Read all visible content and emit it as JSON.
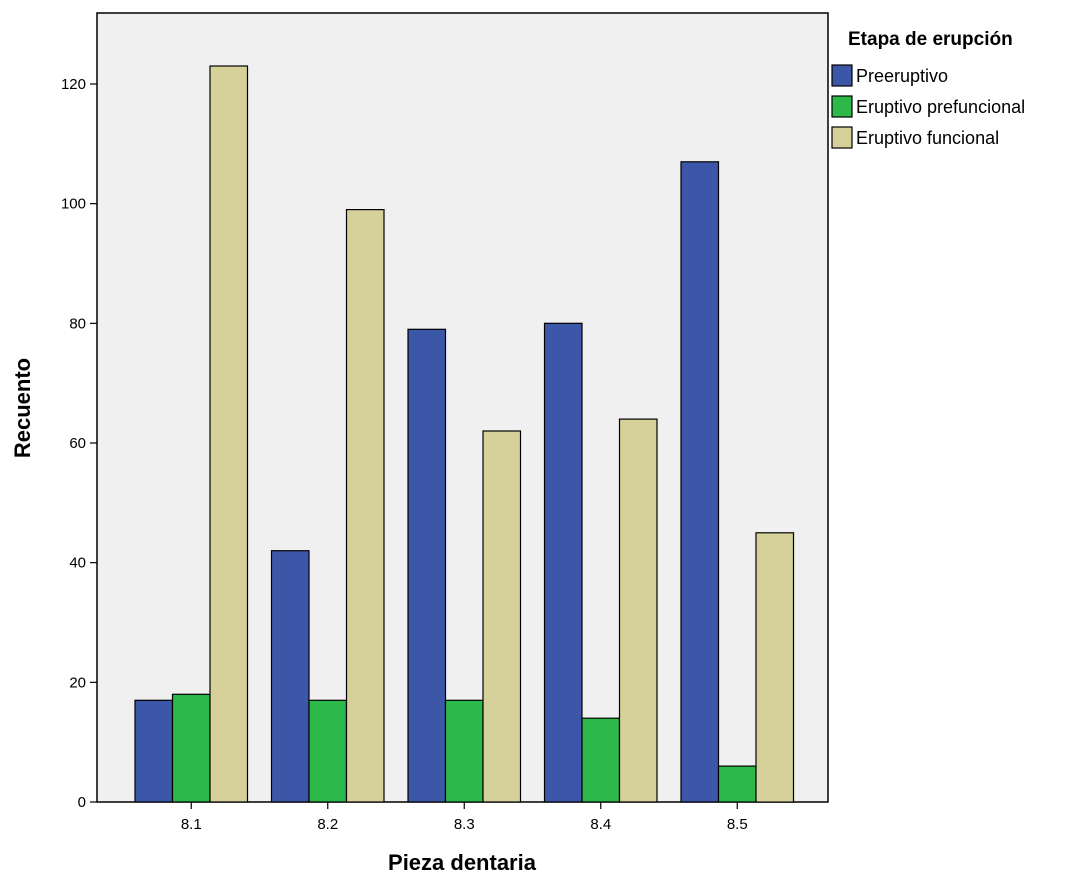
{
  "chart_data": {
    "type": "bar",
    "xlabel": "Pieza dentaria",
    "ylabel": "Recuento",
    "categories": [
      "8.1",
      "8.2",
      "8.3",
      "8.4",
      "8.5"
    ],
    "ylim": [
      0,
      130
    ],
    "yticks": [
      0,
      20,
      40,
      60,
      80,
      100,
      120
    ],
    "grid": false,
    "legend": {
      "title": "Etapa de erupción",
      "placement": "right"
    },
    "series": [
      {
        "name": "Preeruptivo",
        "color": "#3c56a8",
        "values": [
          17,
          42,
          79,
          80,
          107
        ]
      },
      {
        "name": "Eruptivo prefuncional",
        "color": "#2db84a",
        "values": [
          18,
          17,
          17,
          14,
          6
        ]
      },
      {
        "name": "Eruptivo funcional",
        "color": "#d6d19a",
        "values": [
          123,
          99,
          62,
          64,
          45
        ]
      }
    ],
    "plot_background": "#f0f0f0"
  }
}
